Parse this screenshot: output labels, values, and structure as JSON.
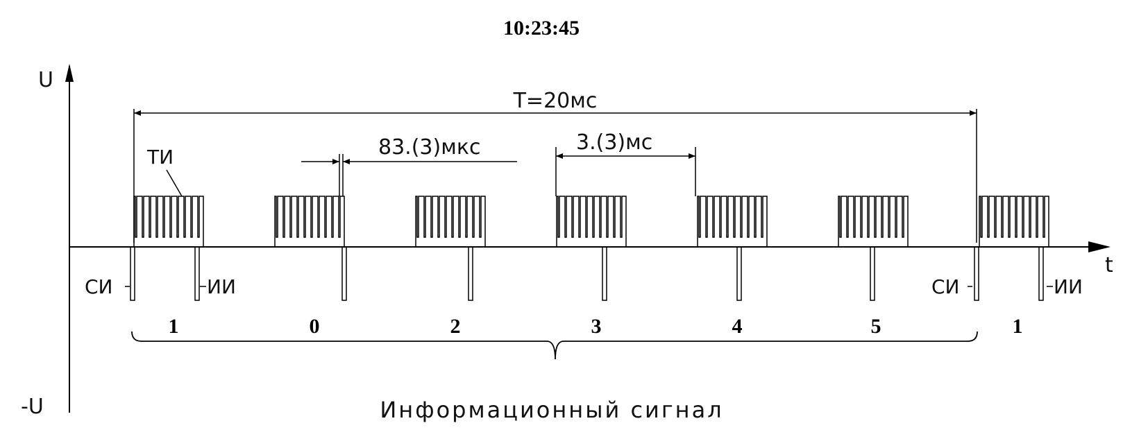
{
  "title": "10:23:45",
  "axes": {
    "y_label": "U",
    "y_neg_label": "-U",
    "x_label": "t"
  },
  "dimensions": {
    "period": "T=20мс",
    "pulse_width": "83.(3)мкс",
    "interval": "3.(3)мс"
  },
  "labels": {
    "ti": "ТИ",
    "si": "СИ",
    "ii": "ИИ"
  },
  "digits": [
    "1",
    "0",
    "2",
    "3",
    "4",
    "5",
    "1"
  ],
  "caption": "Информационный сигнал"
}
